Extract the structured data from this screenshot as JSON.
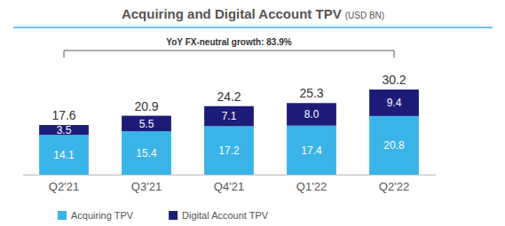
{
  "chart_data": {
    "type": "bar",
    "title": "Acquiring and Digital Account TPV",
    "subtitle": "(USD BN)",
    "annotation": "YoY FX-neutral growth: 83.9%",
    "categories": [
      "Q2'21",
      "Q3'21",
      "Q4'21",
      "Q1'22",
      "Q2'22"
    ],
    "series": [
      {
        "name": "Acquiring TPV",
        "color": "#3ab4e8",
        "values": [
          14.1,
          15.4,
          17.2,
          17.4,
          20.8
        ]
      },
      {
        "name": "Digital Account TPV",
        "color": "#1c1c78",
        "values": [
          3.5,
          5.5,
          7.1,
          8.0,
          9.4
        ],
        "value_labels": [
          "3.5",
          "5.5",
          "7.1",
          "8.0",
          "9.4"
        ]
      }
    ],
    "totals": [
      17.6,
      20.9,
      24.2,
      25.3,
      30.2
    ],
    "stacked": true,
    "data_labels": true,
    "ylim": [
      0,
      45
    ],
    "tick_labels": "x",
    "legend": "bottom"
  }
}
